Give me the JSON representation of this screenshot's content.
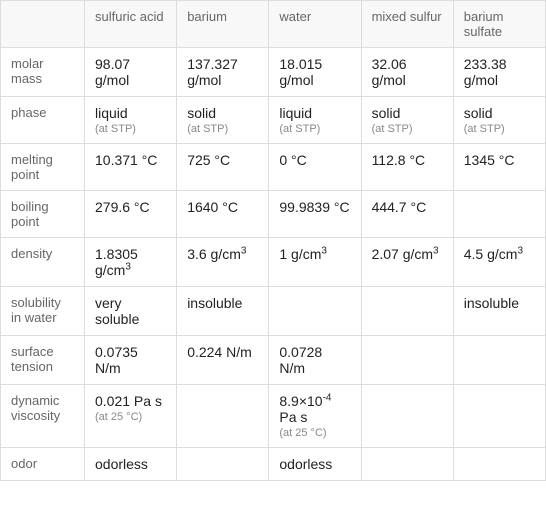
{
  "columns": [
    "sulfuric acid",
    "barium",
    "water",
    "mixed sulfur",
    "barium sulfate"
  ],
  "rows": [
    {
      "label": "molar mass",
      "cells": [
        {
          "val": "98.07 g/mol"
        },
        {
          "val": "137.327 g/mol"
        },
        {
          "val": "18.015 g/mol"
        },
        {
          "val": "32.06 g/mol"
        },
        {
          "val": "233.38 g/mol"
        }
      ]
    },
    {
      "label": "phase",
      "cells": [
        {
          "val": "liquid",
          "sub": "(at STP)"
        },
        {
          "val": "solid",
          "sub": "(at STP)"
        },
        {
          "val": "liquid",
          "sub": "(at STP)"
        },
        {
          "val": "solid",
          "sub": "(at STP)"
        },
        {
          "val": "solid",
          "sub": "(at STP)"
        }
      ]
    },
    {
      "label": "melting point",
      "cells": [
        {
          "val": "10.371 °C"
        },
        {
          "val": "725 °C"
        },
        {
          "val": "0 °C"
        },
        {
          "val": "112.8 °C"
        },
        {
          "val": "1345 °C"
        }
      ]
    },
    {
      "label": "boiling point",
      "cells": [
        {
          "val": "279.6 °C"
        },
        {
          "val": "1640 °C"
        },
        {
          "val": "99.9839 °C"
        },
        {
          "val": "444.7 °C"
        },
        {
          "val": ""
        }
      ]
    },
    {
      "label": "density",
      "cells": [
        {
          "val": "1.8305 g/cm",
          "sup": "3"
        },
        {
          "val": "3.6 g/cm",
          "sup": "3"
        },
        {
          "val": "1 g/cm",
          "sup": "3"
        },
        {
          "val": "2.07 g/cm",
          "sup": "3"
        },
        {
          "val": "4.5 g/cm",
          "sup": "3"
        }
      ]
    },
    {
      "label": "solubility in water",
      "cells": [
        {
          "val": "very soluble"
        },
        {
          "val": "insoluble"
        },
        {
          "val": ""
        },
        {
          "val": ""
        },
        {
          "val": "insoluble"
        }
      ]
    },
    {
      "label": "surface tension",
      "cells": [
        {
          "val": "0.0735 N/m"
        },
        {
          "val": "0.224 N/m"
        },
        {
          "val": "0.0728 N/m"
        },
        {
          "val": ""
        },
        {
          "val": ""
        }
      ]
    },
    {
      "label": "dynamic viscosity",
      "cells": [
        {
          "val": "0.021 Pa s",
          "sub": "(at 25 °C)"
        },
        {
          "val": ""
        },
        {
          "val": "8.9×10",
          "sup": "-4",
          "val2": " Pa s",
          "sub": "(at 25 °C)"
        },
        {
          "val": ""
        },
        {
          "val": ""
        }
      ]
    },
    {
      "label": "odor",
      "cells": [
        {
          "val": "odorless"
        },
        {
          "val": ""
        },
        {
          "val": "odorless"
        },
        {
          "val": ""
        },
        {
          "val": ""
        }
      ]
    }
  ],
  "style": {
    "border_color": "#dddddd",
    "header_bg": "#f8f8f8",
    "header_color": "#666666",
    "cell_color": "#222222",
    "sub_color": "#888888",
    "font_size_main": 14,
    "font_size_label": 13,
    "font_size_sub": 11
  }
}
